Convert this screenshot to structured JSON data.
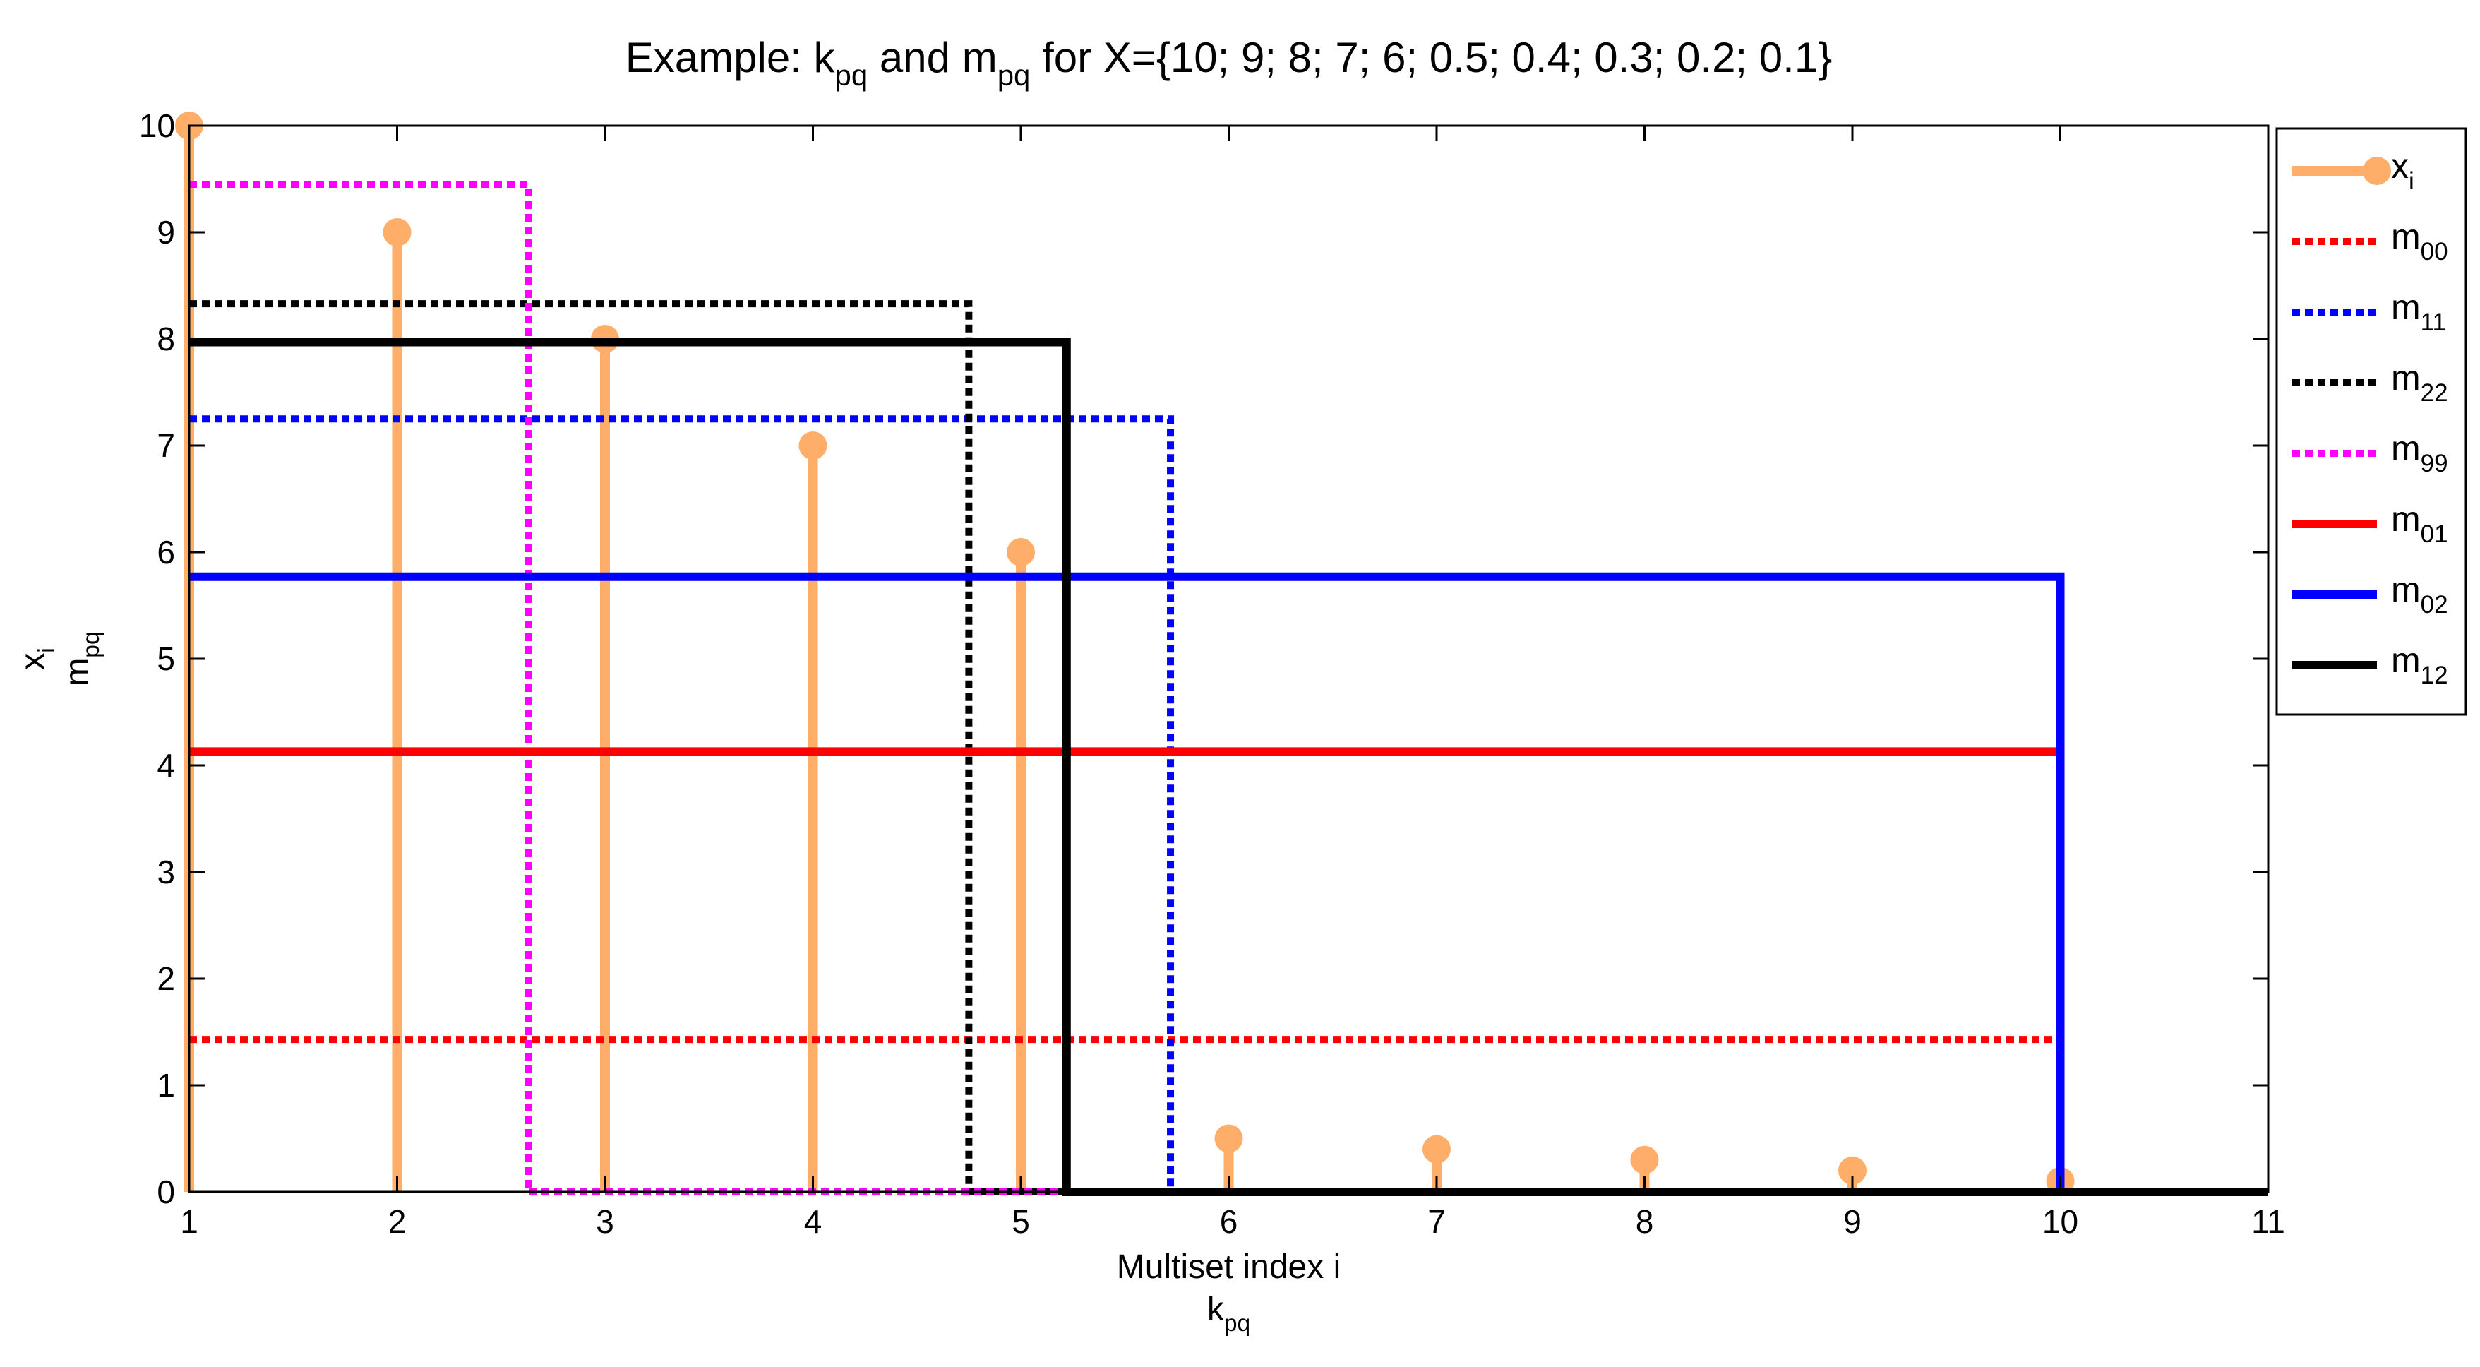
{
  "chart_data": {
    "type": "line",
    "title": {
      "parts": [
        {
          "t": "Example: k"
        },
        {
          "t": "pq",
          "sub": true
        },
        {
          "t": " and m"
        },
        {
          "t": "pq",
          "sub": true
        },
        {
          "t": " for X={10; 9; 8; 7; 6;  0.5; 0.4; 0.3; 0.2; 0.1}"
        }
      ]
    },
    "xlabel": {
      "line1": "Multiset index i",
      "line2_base": "k",
      "line2_sub": "pq"
    },
    "ylabel": {
      "line1_base": "x",
      "line1_sub": "i",
      "line2_base": "m",
      "line2_sub": "pq"
    },
    "xlim": [
      1,
      11
    ],
    "ylim": [
      0,
      10
    ],
    "xticks": [
      1,
      2,
      3,
      4,
      5,
      6,
      7,
      8,
      9,
      10,
      11
    ],
    "yticks": [
      0,
      1,
      2,
      3,
      4,
      5,
      6,
      7,
      8,
      9,
      10
    ],
    "grid": false,
    "legend_position": "outside-right-top",
    "stem_series": {
      "name_base": "x",
      "name_sub": "i",
      "color": "#FFAE6A",
      "x": [
        1,
        2,
        3,
        4,
        5,
        6,
        7,
        8,
        9,
        10
      ],
      "y": [
        10,
        9,
        8,
        7,
        6,
        0.5,
        0.4,
        0.3,
        0.2,
        0.1
      ]
    },
    "step_series": [
      {
        "name_base": "m",
        "name_sub": "00",
        "color": "#FF0000",
        "style": "dotted",
        "level": 1.43,
        "k": 10
      },
      {
        "name_base": "m",
        "name_sub": "11",
        "color": "#0000FF",
        "style": "dotted",
        "level": 7.25,
        "k": 5.72
      },
      {
        "name_base": "m",
        "name_sub": "22",
        "color": "#000000",
        "style": "dotted",
        "level": 8.33,
        "k": 4.75
      },
      {
        "name_base": "m",
        "name_sub": "99",
        "color": "#FF00FF",
        "style": "dotted",
        "level": 9.45,
        "k": 2.63
      },
      {
        "name_base": "m",
        "name_sub": "01",
        "color": "#FF0000",
        "style": "solid",
        "level": 4.13,
        "k": 10
      },
      {
        "name_base": "m",
        "name_sub": "02",
        "color": "#0000FF",
        "style": "solid",
        "level": 5.77,
        "k": 10
      },
      {
        "name_base": "m",
        "name_sub": "12",
        "color": "#000000",
        "style": "solid",
        "level": 7.97,
        "k": 5.22
      }
    ]
  }
}
